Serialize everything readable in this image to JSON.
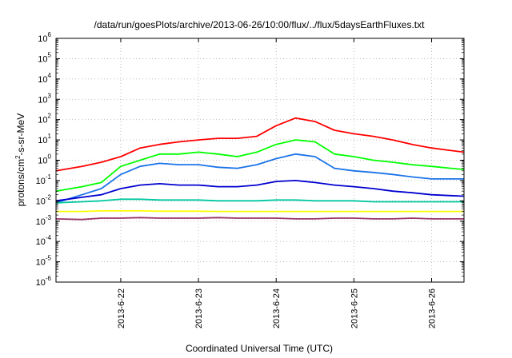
{
  "chart_data": {
    "type": "line",
    "title": "/data/run/goesPlots/archive/2013-06-26/10:00/flux/../flux/5daysEarthFluxes.txt",
    "xlabel": "Coordinated Universal Time (UTC)",
    "ylabel": "protons/cm2-s-sr-MeV",
    "ylabel_parts": {
      "pre": "protons/cm",
      "sup": "2",
      "post": "-s-sr-MeV"
    },
    "yscale": "log",
    "ylim": [
      1e-06,
      1000000.0
    ],
    "xlim": [
      "2013-06-21 04:00",
      "2013-06-26 10:00"
    ],
    "grid": true,
    "y_ticks": [
      {
        "value": 1e-06,
        "base": "10",
        "exp": "-6"
      },
      {
        "value": 1e-05,
        "base": "10",
        "exp": "-5"
      },
      {
        "value": 0.0001,
        "base": "10",
        "exp": "-4"
      },
      {
        "value": 0.001,
        "base": "10",
        "exp": "-3"
      },
      {
        "value": 0.01,
        "base": "10",
        "exp": "-2"
      },
      {
        "value": 0.1,
        "base": "10",
        "exp": "-1"
      },
      {
        "value": 1.0,
        "base": "10",
        "exp": "0"
      },
      {
        "value": 10.0,
        "base": "10",
        "exp": "1"
      },
      {
        "value": 100.0,
        "base": "10",
        "exp": "2"
      },
      {
        "value": 1000.0,
        "base": "10",
        "exp": "3"
      },
      {
        "value": 10000.0,
        "base": "10",
        "exp": "4"
      },
      {
        "value": 100000.0,
        "base": "10",
        "exp": "5"
      },
      {
        "value": 1000000.0,
        "base": "10",
        "exp": "6"
      }
    ],
    "x_ticks": [
      {
        "value": "2013-06-22",
        "label": "2013-6-22"
      },
      {
        "value": "2013-06-23",
        "label": "2013-6-23"
      },
      {
        "value": "2013-06-24",
        "label": "2013-6-24"
      },
      {
        "value": "2013-06-25",
        "label": "2013-6-25"
      },
      {
        "value": "2013-06-26",
        "label": "2013-6-26"
      }
    ],
    "series": [
      {
        "color": "#ff0000",
        "x": [
          "2013-06-21 04:00",
          "2013-06-21 12:00",
          "2013-06-21 18:00",
          "2013-06-22 00:00",
          "2013-06-22 06:00",
          "2013-06-22 12:00",
          "2013-06-22 18:00",
          "2013-06-23 00:00",
          "2013-06-23 06:00",
          "2013-06-23 12:00",
          "2013-06-23 18:00",
          "2013-06-24 00:00",
          "2013-06-24 06:00",
          "2013-06-24 12:00",
          "2013-06-24 18:00",
          "2013-06-25 00:00",
          "2013-06-25 06:00",
          "2013-06-25 12:00",
          "2013-06-25 18:00",
          "2013-06-26 00:00",
          "2013-06-26 06:00",
          "2013-06-26 10:00"
        ],
        "values": [
          0.3,
          0.5,
          0.8,
          1.5,
          4,
          6,
          8,
          10,
          12,
          12,
          15,
          50,
          120,
          80,
          30,
          20,
          15,
          10,
          6,
          4,
          3,
          2.5
        ]
      },
      {
        "color": "#00ff00",
        "x": [
          "2013-06-21 04:00",
          "2013-06-21 12:00",
          "2013-06-21 18:00",
          "2013-06-22 00:00",
          "2013-06-22 06:00",
          "2013-06-22 12:00",
          "2013-06-22 18:00",
          "2013-06-23 00:00",
          "2013-06-23 06:00",
          "2013-06-23 12:00",
          "2013-06-23 18:00",
          "2013-06-24 00:00",
          "2013-06-24 06:00",
          "2013-06-24 12:00",
          "2013-06-24 18:00",
          "2013-06-25 00:00",
          "2013-06-25 06:00",
          "2013-06-25 12:00",
          "2013-06-25 18:00",
          "2013-06-26 00:00",
          "2013-06-26 06:00",
          "2013-06-26 10:00"
        ],
        "values": [
          0.03,
          0.05,
          0.08,
          0.5,
          1.0,
          2.0,
          2.0,
          2.5,
          2.0,
          1.5,
          2.5,
          6,
          10,
          8,
          2,
          1.5,
          1.0,
          0.8,
          0.6,
          0.5,
          0.4,
          0.35
        ]
      },
      {
        "color": "#1a73e8",
        "x": [
          "2013-06-21 04:00",
          "2013-06-21 12:00",
          "2013-06-21 18:00",
          "2013-06-22 00:00",
          "2013-06-22 06:00",
          "2013-06-22 12:00",
          "2013-06-22 18:00",
          "2013-06-23 00:00",
          "2013-06-23 06:00",
          "2013-06-23 12:00",
          "2013-06-23 18:00",
          "2013-06-24 00:00",
          "2013-06-24 06:00",
          "2013-06-24 12:00",
          "2013-06-24 18:00",
          "2013-06-25 00:00",
          "2013-06-25 06:00",
          "2013-06-25 12:00",
          "2013-06-25 18:00",
          "2013-06-26 00:00",
          "2013-06-26 06:00",
          "2013-06-26 10:00"
        ],
        "values": [
          0.008,
          0.02,
          0.04,
          0.2,
          0.5,
          0.7,
          0.6,
          0.6,
          0.45,
          0.4,
          0.6,
          1.2,
          2.0,
          1.5,
          0.4,
          0.3,
          0.25,
          0.2,
          0.15,
          0.12,
          0.12,
          0.12
        ]
      },
      {
        "color": "#0000d0",
        "x": [
          "2013-06-21 04:00",
          "2013-06-21 12:00",
          "2013-06-21 18:00",
          "2013-06-22 00:00",
          "2013-06-22 06:00",
          "2013-06-22 12:00",
          "2013-06-22 18:00",
          "2013-06-23 00:00",
          "2013-06-23 06:00",
          "2013-06-23 12:00",
          "2013-06-23 18:00",
          "2013-06-24 00:00",
          "2013-06-24 06:00",
          "2013-06-24 12:00",
          "2013-06-24 18:00",
          "2013-06-25 00:00",
          "2013-06-25 06:00",
          "2013-06-25 12:00",
          "2013-06-25 18:00",
          "2013-06-26 00:00",
          "2013-06-26 06:00",
          "2013-06-26 10:00"
        ],
        "values": [
          0.01,
          0.015,
          0.02,
          0.04,
          0.06,
          0.07,
          0.06,
          0.06,
          0.05,
          0.05,
          0.06,
          0.09,
          0.1,
          0.08,
          0.06,
          0.05,
          0.04,
          0.03,
          0.025,
          0.02,
          0.018,
          0.017
        ]
      },
      {
        "color": "#00c8a0",
        "x": [
          "2013-06-21 04:00",
          "2013-06-21 12:00",
          "2013-06-21 18:00",
          "2013-06-22 00:00",
          "2013-06-22 06:00",
          "2013-06-22 12:00",
          "2013-06-22 18:00",
          "2013-06-23 00:00",
          "2013-06-23 06:00",
          "2013-06-23 12:00",
          "2013-06-23 18:00",
          "2013-06-24 00:00",
          "2013-06-24 06:00",
          "2013-06-24 12:00",
          "2013-06-24 18:00",
          "2013-06-25 00:00",
          "2013-06-25 06:00",
          "2013-06-25 12:00",
          "2013-06-25 18:00",
          "2013-06-26 00:00",
          "2013-06-26 06:00",
          "2013-06-26 10:00"
        ],
        "values": [
          0.008,
          0.009,
          0.01,
          0.012,
          0.012,
          0.011,
          0.011,
          0.011,
          0.01,
          0.01,
          0.01,
          0.011,
          0.011,
          0.01,
          0.01,
          0.01,
          0.009,
          0.009,
          0.009,
          0.009,
          0.009,
          0.009
        ]
      },
      {
        "color": "#ffff00",
        "x": [
          "2013-06-21 04:00",
          "2013-06-21 12:00",
          "2013-06-21 18:00",
          "2013-06-22 00:00",
          "2013-06-22 06:00",
          "2013-06-22 12:00",
          "2013-06-22 18:00",
          "2013-06-23 00:00",
          "2013-06-23 06:00",
          "2013-06-23 12:00",
          "2013-06-23 18:00",
          "2013-06-24 00:00",
          "2013-06-24 06:00",
          "2013-06-24 12:00",
          "2013-06-24 18:00",
          "2013-06-25 00:00",
          "2013-06-25 06:00",
          "2013-06-25 12:00",
          "2013-06-25 18:00",
          "2013-06-26 00:00",
          "2013-06-26 06:00",
          "2013-06-26 10:00"
        ],
        "values": [
          0.003,
          0.003,
          0.0032,
          0.0032,
          0.0032,
          0.0031,
          0.0031,
          0.0031,
          0.003,
          0.003,
          0.003,
          0.003,
          0.003,
          0.003,
          0.003,
          0.003,
          0.003,
          0.003,
          0.003,
          0.003,
          0.003,
          0.003
        ]
      },
      {
        "color": "#993366",
        "x": [
          "2013-06-21 04:00",
          "2013-06-21 12:00",
          "2013-06-21 18:00",
          "2013-06-22 00:00",
          "2013-06-22 06:00",
          "2013-06-22 12:00",
          "2013-06-22 18:00",
          "2013-06-23 00:00",
          "2013-06-23 06:00",
          "2013-06-23 12:00",
          "2013-06-23 18:00",
          "2013-06-24 00:00",
          "2013-06-24 06:00",
          "2013-06-24 12:00",
          "2013-06-24 18:00",
          "2013-06-25 00:00",
          "2013-06-25 06:00",
          "2013-06-25 12:00",
          "2013-06-25 18:00",
          "2013-06-26 00:00",
          "2013-06-26 06:00",
          "2013-06-26 10:00"
        ],
        "values": [
          0.0013,
          0.0012,
          0.0014,
          0.0014,
          0.0015,
          0.0014,
          0.0014,
          0.0014,
          0.0015,
          0.0014,
          0.0014,
          0.0014,
          0.0013,
          0.0013,
          0.0014,
          0.0014,
          0.0013,
          0.0013,
          0.0014,
          0.0013,
          0.0013,
          0.0013
        ]
      }
    ]
  }
}
